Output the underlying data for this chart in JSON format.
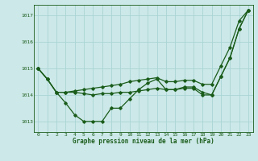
{
  "title": "Graphe pression niveau de la mer (hPa)",
  "background_color": "#cce8e8",
  "grid_color": "#aad4d4",
  "line_color": "#1a5c1a",
  "xlim": [
    -0.5,
    23.5
  ],
  "ylim": [
    1012.6,
    1017.4
  ],
  "yticks": [
    1013,
    1014,
    1015,
    1016,
    1017
  ],
  "xticks": [
    0,
    1,
    2,
    3,
    4,
    5,
    6,
    7,
    8,
    9,
    10,
    11,
    12,
    13,
    14,
    15,
    16,
    17,
    18,
    19,
    20,
    21,
    22,
    23
  ],
  "s_steep": [
    1015.0,
    1014.6,
    1014.1,
    1014.1,
    1014.15,
    1014.2,
    1014.25,
    1014.3,
    1014.35,
    1014.4,
    1014.5,
    1014.55,
    1014.6,
    1014.65,
    1014.5,
    1014.5,
    1014.55,
    1014.55,
    1014.4,
    1014.4,
    1015.1,
    1015.8,
    1016.8,
    1017.2
  ],
  "s_flat": [
    1015.0,
    1014.6,
    1014.1,
    1014.1,
    1014.1,
    1014.05,
    1014.0,
    1014.05,
    1014.05,
    1014.1,
    1014.1,
    1014.15,
    1014.2,
    1014.25,
    1014.2,
    1014.2,
    1014.25,
    1014.25,
    1014.0,
    1014.0,
    1014.7,
    1015.4,
    1016.5,
    1017.2
  ],
  "s_dip": [
    1015.0,
    1014.6,
    1014.1,
    1013.7,
    1013.25,
    1013.0,
    1013.0,
    1013.0,
    1013.5,
    1013.5,
    1013.85,
    1014.2,
    1014.45,
    1014.6,
    1014.2,
    1014.2,
    1014.3,
    1014.3,
    1014.1,
    1014.0,
    1014.7,
    1015.4,
    1016.5,
    1017.2
  ]
}
